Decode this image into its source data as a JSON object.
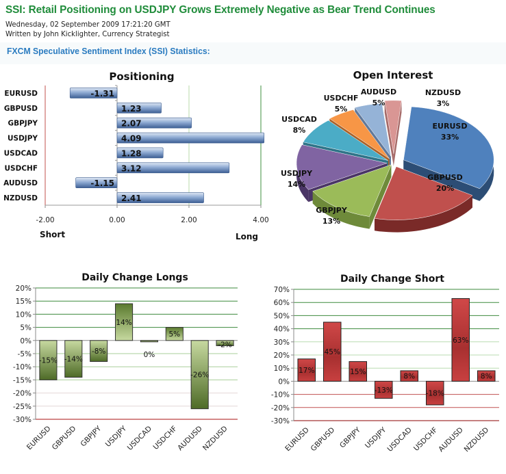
{
  "article": {
    "title": "SSI: Retail Positioning on USDJPY Grows Extremely Negative as Bear Trend Continues",
    "date": "Wednesday, 02 September 2009 17:21:20 GMT",
    "byline": "Written by John Kicklighter, Currency Strategist",
    "section_heading": "FXCM Speculative  Sentiment Index (SSI) Statistics:"
  },
  "colors": {
    "title_green": "#1f8c3a",
    "heading_blue": "#2a7bc0",
    "bar_blue": "#4a72a8",
    "bar_green": "#6b8a3a",
    "bar_red": "#c23a3a"
  },
  "chart_data": [
    {
      "id": "positioning",
      "type": "bar",
      "orientation": "horizontal",
      "title": "Positioning",
      "categories": [
        "EURUSD",
        "GBPUSD",
        "GBPJPY",
        "USDJPY",
        "USDCAD",
        "USDCHF",
        "AUDUSD",
        "NZDUSD"
      ],
      "values": [
        -1.31,
        1.23,
        2.07,
        4.09,
        1.28,
        3.12,
        -1.15,
        2.41
      ],
      "value_labels": [
        "-1.31",
        "1.23",
        "2.07",
        "4.09",
        "1.28",
        "3.12",
        "-1.15",
        "2.41"
      ],
      "xlim": [
        -2,
        4
      ],
      "xticks": [
        "-2.00",
        "0.00",
        "2.00",
        "4.00"
      ],
      "xlabel_left": "Short",
      "xlabel_right": "Long",
      "grid": true
    },
    {
      "id": "open-interest",
      "type": "pie",
      "title": "Open Interest",
      "categories": [
        "EURUSD",
        "GBPUSD",
        "GBPJPY",
        "USDJPY",
        "USDCAD",
        "USDCHF",
        "AUDUSD",
        "NZDUSD"
      ],
      "values": [
        33,
        20,
        13,
        14,
        8,
        5,
        5,
        3
      ],
      "value_labels": [
        "33%",
        "20%",
        "13%",
        "14%",
        "8%",
        "5%",
        "5%",
        "3%"
      ],
      "colors": [
        "#4f81bd",
        "#c0504d",
        "#9bbb59",
        "#8064a2",
        "#4bacc6",
        "#f79646",
        "#95b3d7",
        "#d99694"
      ]
    },
    {
      "id": "daily-change-longs",
      "type": "bar",
      "title": "Daily Change Longs",
      "categories": [
        "EURUSD",
        "GBPUSD",
        "GBPJPY",
        "USDJPY",
        "USDCAD",
        "USDCHF",
        "AUDUSD",
        "NZDUSD"
      ],
      "values": [
        -15,
        -14,
        -8,
        14,
        0,
        5,
        -26,
        -2
      ],
      "value_labels": [
        "-15%",
        "-14%",
        "-8%",
        "14%",
        "0%",
        "5%",
        "-26%",
        "-2%"
      ],
      "ylim": [
        -30,
        20
      ],
      "yticks": [
        "20%",
        "15%",
        "10%",
        "5%",
        "0%",
        "-5%",
        "-10%",
        "-15%",
        "-20%",
        "-25%",
        "-30%"
      ],
      "grid": true
    },
    {
      "id": "daily-change-short",
      "type": "bar",
      "title": "Daily Change Short",
      "categories": [
        "EURUSD",
        "GBPUSD",
        "GBPJPY",
        "USDJPY",
        "USDCAD",
        "USDCHF",
        "AUDUSD",
        "NZDUSD"
      ],
      "values": [
        17,
        45,
        15,
        -13,
        8,
        -18,
        63,
        8
      ],
      "value_labels": [
        "17%",
        "45%",
        "15%",
        "-13%",
        "8%",
        "-18%",
        "63%",
        "8%"
      ],
      "ylim": [
        -30,
        70
      ],
      "yticks": [
        "70%",
        "60%",
        "50%",
        "40%",
        "30%",
        "20%",
        "10%",
        "0%",
        "-10%",
        "-20%",
        "-30%"
      ],
      "grid": true
    }
  ]
}
